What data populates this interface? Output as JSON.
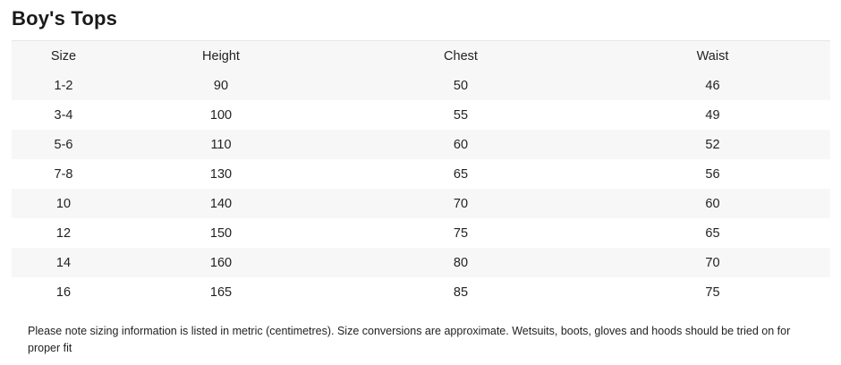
{
  "title": "Boy's Tops",
  "table": {
    "headers": [
      "Size",
      "Height",
      "Chest",
      "Waist"
    ],
    "rows": [
      [
        "1-2",
        "90",
        "50",
        "46"
      ],
      [
        "3-4",
        "100",
        "55",
        "49"
      ],
      [
        "5-6",
        "110",
        "60",
        "52"
      ],
      [
        "7-8",
        "130",
        "65",
        "56"
      ],
      [
        "10",
        "140",
        "70",
        "60"
      ],
      [
        "12",
        "150",
        "75",
        "65"
      ],
      [
        "14",
        "160",
        "80",
        "70"
      ],
      [
        "16",
        "165",
        "85",
        "75"
      ]
    ]
  },
  "note": "Please note sizing information is listed in metric (centimetres). Size conversions are approximate. Wetsuits, boots, gloves and hoods should be tried on for proper fit",
  "colors": {
    "stripe": "#f7f7f7",
    "text": "#222222"
  }
}
